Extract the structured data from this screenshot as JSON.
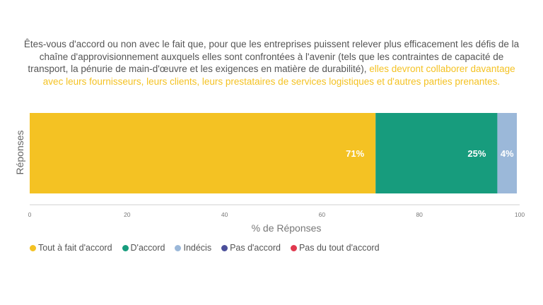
{
  "title": {
    "part1": "Êtes-vous d'accord ou non avec le fait que, pour que les entreprises puissent relever plus efficacement les défis de la chaîne d'approvisionnement auxquels elles sont confrontées à l'avenir (tels que les contraintes de capacité de transport, la pénurie de main-d'œuvre et les exigences en matière de durabilité),",
    "part2": "elles devront collaborer davantage avec leurs fournisseurs, leurs clients, leurs prestataires de services logistiques et d'autres parties prenantes.",
    "highlight_color": "#F4C223"
  },
  "chart_data": {
    "type": "bar",
    "orientation": "horizontal-stacked",
    "categories": [
      "Réponses"
    ],
    "series": [
      {
        "name": "Tout à fait d'accord",
        "values": [
          71
        ],
        "label": "71%",
        "color": "#F4C223"
      },
      {
        "name": "D'accord",
        "values": [
          25
        ],
        "label": "25%",
        "color": "#179C7D"
      },
      {
        "name": "Indécis",
        "values": [
          4
        ],
        "label": "4%",
        "color": "#9BB8D9"
      },
      {
        "name": "Pas d'accord",
        "values": [
          0
        ],
        "label": "",
        "color": "#4B4F9A"
      },
      {
        "name": "Pas du tout d'accord",
        "values": [
          0
        ],
        "label": "",
        "color": "#E0384E"
      }
    ],
    "xlabel": "% de Réponses",
    "ylabel": "Réponses",
    "xlim": [
      0,
      100
    ],
    "xticks": [
      0,
      20,
      40,
      60,
      80,
      100
    ],
    "grid": false,
    "legend_position": "bottom-left"
  }
}
